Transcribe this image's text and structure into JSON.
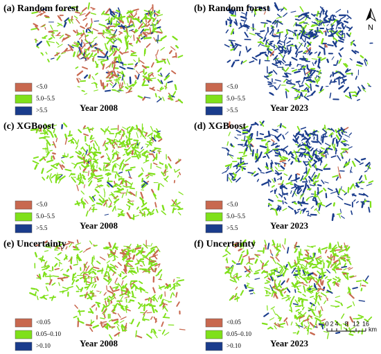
{
  "panels": [
    {
      "title": "(a) Random forest",
      "year": "Year 2008",
      "legend": [
        {
          "label": "<5.0",
          "color": "#c8684f"
        },
        {
          "label": "5.0–5.5",
          "color": "#7fe01a"
        },
        {
          "label": ">5.5",
          "color": "#1a3c8c"
        }
      ]
    },
    {
      "title": "(b) Random forest",
      "year": "Year 2023",
      "legend": [
        {
          "label": "<5.0",
          "color": "#c8684f"
        },
        {
          "label": "5.0–5.5",
          "color": "#7fe01a"
        },
        {
          "label": ">5.5",
          "color": "#1a3c8c"
        }
      ]
    },
    {
      "title": "(c) XGBoost",
      "year": "Year 2008",
      "legend": [
        {
          "label": "<5.0",
          "color": "#c8684f"
        },
        {
          "label": "5.0–5.5",
          "color": "#7fe01a"
        },
        {
          "label": ">5.5",
          "color": "#1a3c8c"
        }
      ]
    },
    {
      "title": "(d) XGBoost",
      "year": "Year 2023",
      "legend": [
        {
          "label": "<5.0",
          "color": "#c8684f"
        },
        {
          "label": "5.0–5.5",
          "color": "#7fe01a"
        },
        {
          "label": ">5.5",
          "color": "#1a3c8c"
        }
      ]
    },
    {
      "title": "(e) Uncertainty",
      "year": "Year 2008",
      "legend": [
        {
          "label": "<0.05",
          "color": "#c8684f"
        },
        {
          "label": "0.05–0.10",
          "color": "#7fe01a"
        },
        {
          "label": ">0.10",
          "color": "#1a3c8c"
        }
      ]
    },
    {
      "title": "(f) Uncertainty",
      "year": "Year 2023",
      "legend": [
        {
          "label": "<0.05",
          "color": "#c8684f"
        },
        {
          "label": "0.05–0.10",
          "color": "#7fe01a"
        },
        {
          "label": ">0.10",
          "color": "#1a3c8c"
        }
      ]
    }
  ],
  "north": "N",
  "scale_bar": {
    "ticks": [
      0,
      2,
      4,
      8,
      12,
      16
    ],
    "unit": "km"
  }
}
